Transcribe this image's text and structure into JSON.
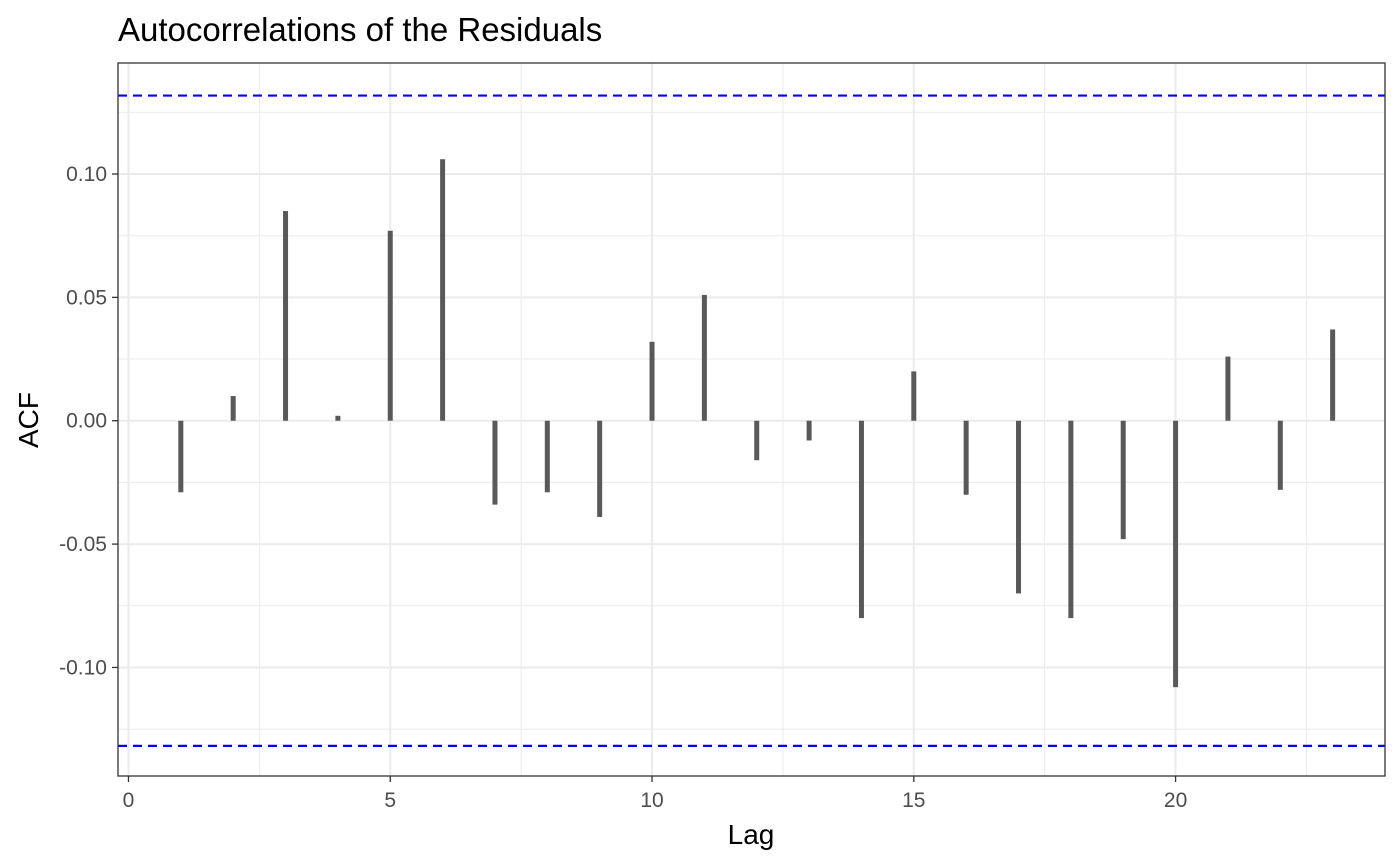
{
  "chart_data": {
    "type": "bar",
    "title": "Autocorrelations of the Residuals",
    "xlabel": "Lag",
    "ylabel": "ACF",
    "x": [
      1,
      2,
      3,
      4,
      5,
      6,
      7,
      8,
      9,
      10,
      11,
      12,
      13,
      14,
      15,
      16,
      17,
      18,
      19,
      20,
      21,
      22,
      23
    ],
    "values": [
      -0.029,
      0.01,
      0.085,
      0.002,
      0.077,
      0.106,
      -0.034,
      -0.029,
      -0.039,
      0.032,
      0.051,
      -0.016,
      -0.008,
      -0.08,
      0.02,
      -0.03,
      -0.07,
      -0.08,
      -0.048,
      -0.108,
      0.026,
      -0.028,
      0.037
    ],
    "confidence_bound": 0.1318,
    "xlim": [
      -0.2,
      24.0
    ],
    "ylim": [
      -0.144,
      0.145
    ],
    "x_ticks": [
      0,
      5,
      10,
      15,
      20
    ],
    "x_tick_labels": [
      "0",
      "5",
      "10",
      "15",
      "20"
    ],
    "y_ticks": [
      -0.1,
      -0.05,
      0.0,
      0.05,
      0.1
    ],
    "y_tick_labels": [
      "-0.10",
      "-0.05",
      "0.00",
      "0.05",
      "0.10"
    ],
    "grid": true,
    "colors": {
      "bars": "#595959",
      "confidence_line": "#0000ff",
      "grid": "#ebebeb",
      "panel_border": "#333333"
    }
  }
}
